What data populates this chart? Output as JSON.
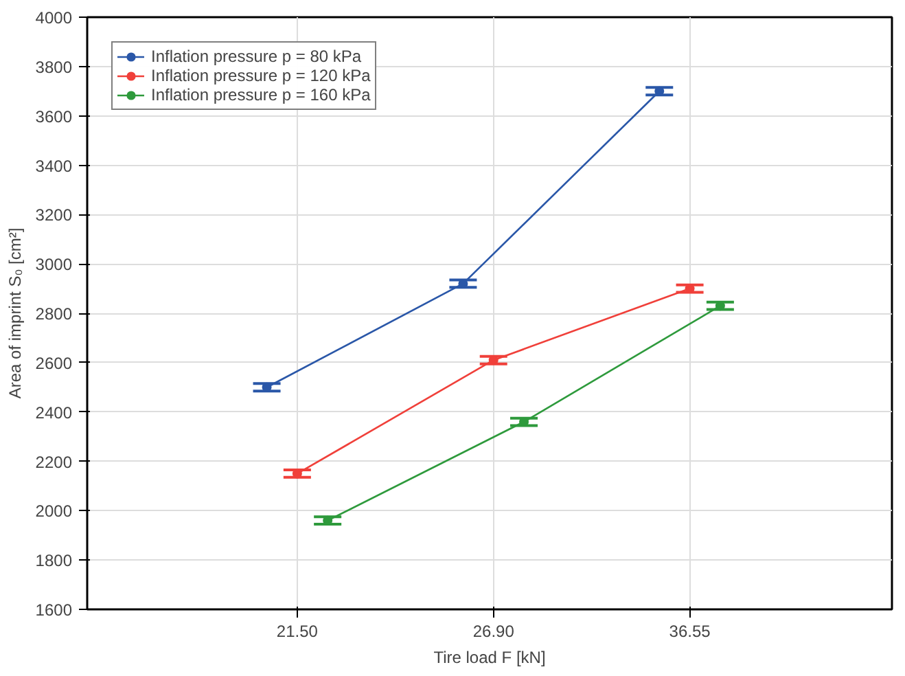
{
  "chart_data": {
    "type": "line",
    "xlabel": "Tire load F [kN]",
    "ylabel": "Area of imprint S₀ [cm²]",
    "categories": [
      "21.50",
      "26.90",
      "36.55"
    ],
    "ylim": [
      1600,
      4000
    ],
    "yticks": [
      1600,
      1800,
      2000,
      2200,
      2400,
      2600,
      2800,
      3000,
      3200,
      3400,
      3600,
      3800,
      4000
    ],
    "grid": true,
    "legend": "top left",
    "marker": "circle",
    "line_style": "solid",
    "series": [
      {
        "name": "Inflation pressure p = 80 kPa",
        "color": "#2a57a8",
        "values": [
          2500,
          2920,
          3700
        ],
        "errors": [
          15,
          15,
          15
        ]
      },
      {
        "name": "Inflation pressure p = 120 kPa",
        "color": "#f0403a",
        "values": [
          2150,
          2610,
          2900
        ],
        "errors": [
          15,
          15,
          15
        ]
      },
      {
        "name": "Inflation pressure p = 160 kPa",
        "color": "#2e9a3c",
        "values": [
          1960,
          2360,
          2830
        ],
        "errors": [
          15,
          15,
          15
        ]
      }
    ]
  }
}
